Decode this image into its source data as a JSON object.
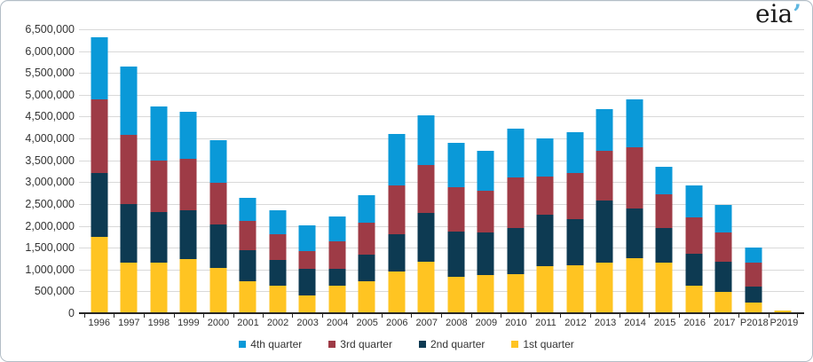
{
  "logo": {
    "text": "eia",
    "mark": "’"
  },
  "chart_data": {
    "type": "bar",
    "stacked": true,
    "title": "",
    "xlabel": "",
    "ylabel": "",
    "categories": [
      "1996",
      "1997",
      "1998",
      "1999",
      "2000",
      "2001",
      "2002",
      "2003",
      "2004",
      "2005",
      "2006",
      "2007",
      "2008",
      "2009",
      "2010",
      "2011",
      "2012",
      "2013",
      "2014",
      "2015",
      "2016",
      "2017",
      "P2018",
      "P2019"
    ],
    "series": [
      {
        "name": "1st quarter",
        "color": "#ffc422",
        "values": [
          1730000,
          1145000,
          1130000,
          1210000,
          1020000,
          705000,
          605000,
          385000,
          605000,
          715000,
          930000,
          1165000,
          820000,
          860000,
          875000,
          1055000,
          1075000,
          1145000,
          1245000,
          1145000,
          605000,
          465000,
          230000,
          50000
        ]
      },
      {
        "name": "2nd quarter",
        "color": "#0d3a52",
        "values": [
          1460000,
          1330000,
          1165000,
          1120000,
          985000,
          725000,
          595000,
          605000,
          385000,
          605000,
          860000,
          1115000,
          1030000,
          975000,
          1060000,
          1185000,
          1050000,
          1410000,
          1130000,
          780000,
          745000,
          690000,
          350000,
          0
        ]
      },
      {
        "name": "3rd quarter",
        "color": "#9e3b46",
        "values": [
          1690000,
          1595000,
          1185000,
          1185000,
          955000,
          665000,
          590000,
          420000,
          635000,
          740000,
          1115000,
          1100000,
          1015000,
          950000,
          1155000,
          870000,
          1070000,
          1150000,
          1410000,
          780000,
          825000,
          665000,
          565000,
          0
        ]
      },
      {
        "name": "4th quarter",
        "color": "#0a99d8",
        "values": [
          1420000,
          1560000,
          1240000,
          1085000,
          975000,
          530000,
          540000,
          575000,
          565000,
          620000,
          1180000,
          1130000,
          1015000,
          915000,
          1115000,
          880000,
          930000,
          945000,
          1095000,
          630000,
          730000,
          640000,
          340000,
          0
        ]
      }
    ],
    "totals": [
      6300000,
      5630000,
      4720000,
      4600000,
      3935000,
      2625000,
      2330000,
      1985000,
      2190000,
      2680000,
      4085000,
      4510000,
      3880000,
      3700000,
      4205000,
      3990000,
      4125000,
      4650000,
      4880000,
      3335000,
      2905000,
      2460000,
      1485000,
      50000
    ],
    "ylim": [
      0,
      6500000
    ],
    "ytick_step": 500000,
    "ytick_labels": [
      "0",
      "500,000",
      "1,000,000",
      "1,500,000",
      "2,000,000",
      "2,500,000",
      "3,000,000",
      "3,500,000",
      "4,000,000",
      "4,500,000",
      "5,000,000",
      "5,500,000",
      "6,000,000",
      "6,500,000"
    ],
    "grid": true,
    "legend_position": "bottom",
    "legend_order": [
      "4th quarter",
      "3rd quarter",
      "2nd quarter",
      "1st quarter"
    ]
  },
  "colors": {
    "grid": "#d9d9d9",
    "axis": "#262626",
    "text": "#333333",
    "frame": "#b3bdc6",
    "logo_text": "#1a1a1a",
    "logo_mark": "#5fb7e0"
  }
}
